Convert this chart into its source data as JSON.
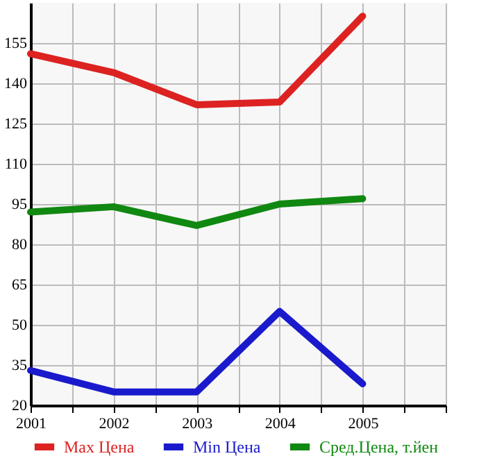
{
  "chart_data": {
    "type": "line",
    "x": [
      2001,
      2002,
      2003,
      2004,
      2005
    ],
    "series": [
      {
        "name": "Max Цена",
        "color": "#dd2222",
        "values": [
          151,
          144,
          132,
          133,
          165
        ]
      },
      {
        "name": "Min Цена",
        "color": "#1a1acc",
        "values": [
          33,
          25,
          25,
          55,
          28
        ]
      },
      {
        "name": "Сред.Цена, т.йен",
        "color": "#118811",
        "values": [
          92,
          94,
          87,
          95,
          97
        ]
      }
    ],
    "xlim": [
      2001,
      2006
    ],
    "xticks": [
      2001,
      {
        "value": 2001.5,
        "label": null
      },
      2002,
      {
        "value": 2002.5,
        "label": null
      },
      2003,
      {
        "value": 2003.5,
        "label": null
      },
      2004,
      {
        "value": 2004.5,
        "label": null
      },
      2005,
      {
        "value": 2005.5,
        "label": null
      },
      {
        "value": 2006,
        "label": null
      }
    ],
    "ylim": [
      20,
      170
    ],
    "yticks": [
      20,
      35,
      50,
      65,
      80,
      95,
      110,
      125,
      140,
      155
    ],
    "grid": true,
    "legend": "bottom",
    "marker": "none",
    "line_style": "solid"
  }
}
